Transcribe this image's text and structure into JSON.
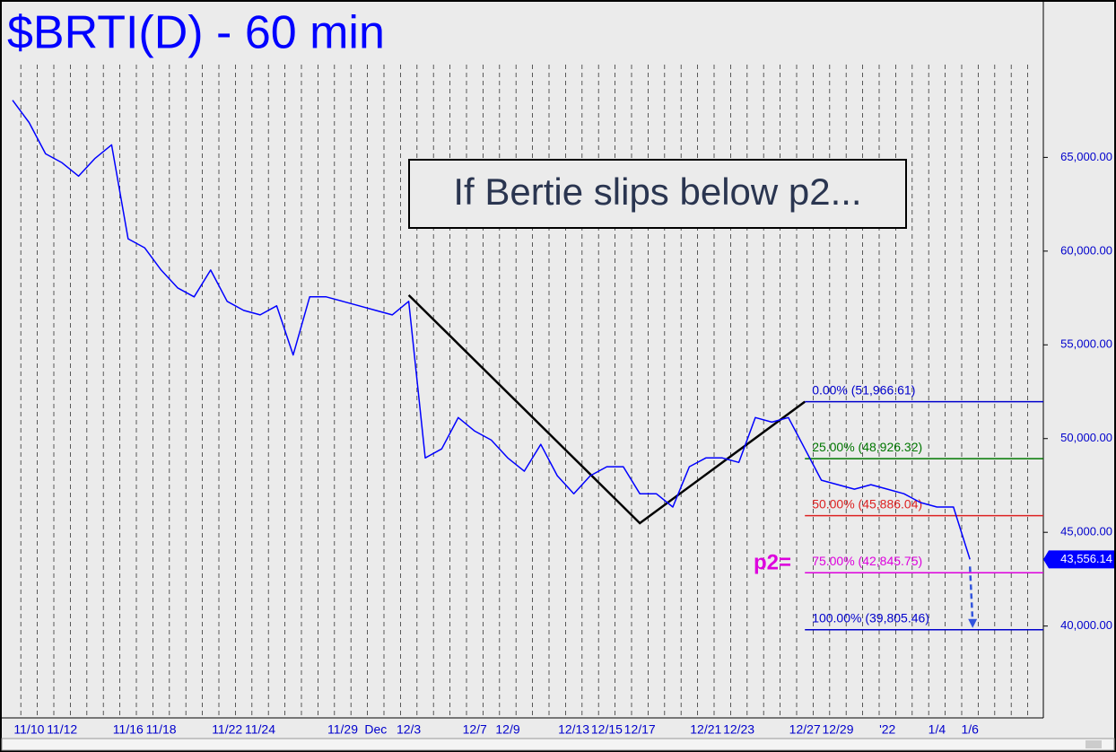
{
  "chart_data": {
    "type": "line",
    "title": "$BRTI(D) - 60 min",
    "annotation": "If Bertie slips below p2...",
    "target_label": "p2=",
    "categories": [
      null,
      "11/10",
      null,
      "11/12",
      null,
      null,
      null,
      "11/16",
      null,
      "11/18",
      null,
      null,
      null,
      "11/22",
      null,
      "11/24",
      null,
      null,
      null,
      null,
      "11/29",
      null,
      "Dec",
      null,
      "12/3",
      null,
      null,
      null,
      "12/7",
      null,
      "12/9",
      null,
      null,
      null,
      "12/13",
      null,
      "12/15",
      null,
      "12/17",
      null,
      null,
      null,
      "12/21",
      null,
      "12/23",
      null,
      null,
      null,
      "12/27",
      null,
      "12/29",
      null,
      null,
      "'22",
      null,
      null,
      "1/4",
      null,
      "1/6",
      null,
      null,
      null,
      null
    ],
    "series": [
      {
        "name": "$BRTI",
        "color": "#0000ff",
        "values": [
          68050,
          66860,
          65190,
          64710,
          64000,
          64950,
          65670,
          60660,
          60180,
          58990,
          58040,
          57560,
          58990,
          57320,
          56840,
          56600,
          57080,
          54460,
          57560,
          57560,
          57320,
          57080,
          56840,
          56600,
          57320,
          48970,
          49450,
          51120,
          50400,
          49920,
          48970,
          48260,
          49690,
          48020,
          47060,
          48020,
          48500,
          48500,
          47060,
          47060,
          46350,
          48500,
          48970,
          48970,
          48730,
          51120,
          50880,
          51120,
          49450,
          47780,
          47540,
          47300,
          47540,
          47300,
          47060,
          46590,
          46350,
          46350,
          43556.14,
          null,
          null,
          null,
          null
        ],
        "last_label": "43,556.14"
      }
    ],
    "pattern": {
      "color": "#000000",
      "x": [
        "12/3",
        "12/17",
        "12/27"
      ],
      "values": [
        57653,
        45487,
        51966.61
      ]
    },
    "levels": [
      {
        "label": "0.00% (51,966.61)",
        "value": 51966.61,
        "color": "#0000cc"
      },
      {
        "label": "25.00% (48,926.32)",
        "value": 48926.32,
        "color": "#007700"
      },
      {
        "label": "50.00% (45,886.04)",
        "value": 45886.04,
        "color": "#dd2222"
      },
      {
        "label": "75.00% (42,845.75)",
        "value": 42845.75,
        "color": "#dd00dd"
      },
      {
        "label": "100.00% (39,805.46)",
        "value": 39805.46,
        "color": "#0000cc"
      }
    ],
    "ylim": [
      35100,
      73300
    ],
    "yticks": [
      {
        "value": 40000,
        "label": "40,000.00"
      },
      {
        "value": 45000,
        "label": "45,000.00"
      },
      {
        "value": 50000,
        "label": "50,000.00"
      },
      {
        "value": 55000,
        "label": "55,000.00"
      },
      {
        "value": 60000,
        "label": "60,000.00"
      },
      {
        "value": 65000,
        "label": "65,000.00"
      }
    ]
  }
}
